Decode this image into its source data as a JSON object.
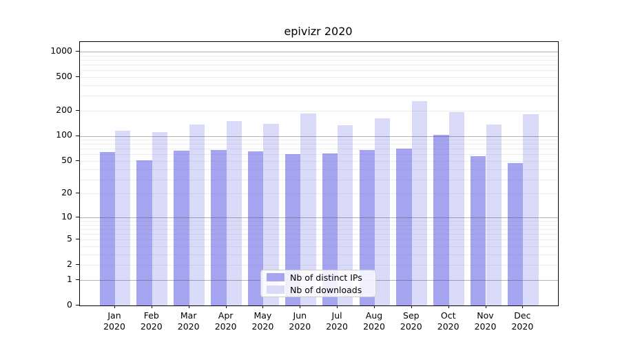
{
  "window": {
    "kind": "chart-figure"
  },
  "chart_data": {
    "type": "bar",
    "title": "epivizr 2020",
    "categories": [
      "Jan 2020",
      "Feb 2020",
      "Mar 2020",
      "Apr 2020",
      "May 2020",
      "Jun 2020",
      "Jul 2020",
      "Aug 2020",
      "Sep 2020",
      "Oct 2020",
      "Nov 2020",
      "Dec 2020"
    ],
    "series": [
      {
        "name": "Nb of distinct IPs",
        "color": "#a4a4f0",
        "values": [
          64,
          51,
          66,
          68,
          65,
          60,
          62,
          68,
          70,
          103,
          57,
          47
        ]
      },
      {
        "name": "Nb of downloads",
        "color": "#d9d9f8",
        "values": [
          115,
          111,
          136,
          150,
          138,
          184,
          134,
          163,
          260,
          190,
          136,
          182
        ]
      }
    ],
    "yscale": "log10(value+1)",
    "y_ticks": [
      0,
      1,
      2,
      5,
      10,
      20,
      50,
      100,
      200,
      500,
      1000
    ],
    "y_major_gridlines": [
      1,
      10,
      100,
      1000
    ],
    "ylim": [
      0,
      1200
    ],
    "grid": "horizontal, log minor + major, drawn over bars",
    "legend_position": "lower center",
    "xlabel": "",
    "ylabel": ""
  }
}
